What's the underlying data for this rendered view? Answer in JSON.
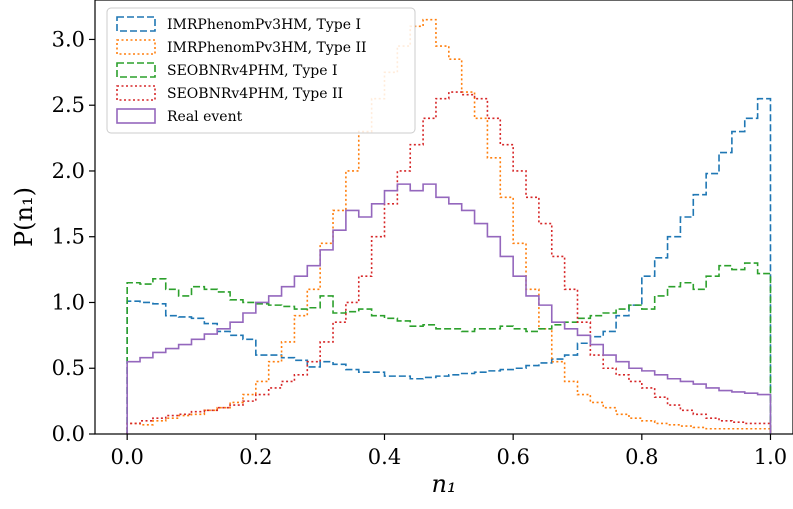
{
  "chart_data": {
    "type": "histogram",
    "xlabel": "n₁",
    "ylabel": "P(n₁)",
    "xlim": [
      -0.05,
      1.035
    ],
    "ylim": [
      0,
      3.3
    ],
    "xticks": [
      0.0,
      0.2,
      0.4,
      0.6,
      0.8,
      1.0
    ],
    "xtick_labels": [
      "0.0",
      "0.2",
      "0.4",
      "0.6",
      "0.8",
      "1.0"
    ],
    "yticks": [
      0.0,
      0.5,
      1.0,
      1.5,
      2.0,
      2.5,
      3.0
    ],
    "ytick_labels": [
      "0.0",
      "0.5",
      "1.0",
      "1.5",
      "2.0",
      "2.5",
      "3.0"
    ],
    "grid": false,
    "legend_position": "upper-left",
    "bin_edges": [
      0.0,
      0.02,
      0.04,
      0.06,
      0.08,
      0.1,
      0.12,
      0.14,
      0.16,
      0.18,
      0.2,
      0.22,
      0.24,
      0.26,
      0.28,
      0.3,
      0.32,
      0.34,
      0.36,
      0.38,
      0.4,
      0.42,
      0.44,
      0.46,
      0.48,
      0.5,
      0.52,
      0.54,
      0.56,
      0.58,
      0.6,
      0.62,
      0.64,
      0.66,
      0.68,
      0.7,
      0.72,
      0.74,
      0.76,
      0.78,
      0.8,
      0.82,
      0.84,
      0.86,
      0.88,
      0.9,
      0.92,
      0.94,
      0.96,
      0.98,
      1.0
    ],
    "series": [
      {
        "name": "IMRPhenomPv3HM, Type I",
        "color": "#1f77b4",
        "dash": "dashed",
        "values": [
          1.01,
          1.0,
          0.99,
          0.9,
          0.89,
          0.88,
          0.84,
          0.78,
          0.75,
          0.72,
          0.6,
          0.6,
          0.58,
          0.56,
          0.51,
          0.55,
          0.53,
          0.49,
          0.47,
          0.47,
          0.44,
          0.44,
          0.42,
          0.43,
          0.44,
          0.45,
          0.46,
          0.47,
          0.48,
          0.49,
          0.5,
          0.52,
          0.54,
          0.57,
          0.6,
          0.69,
          0.74,
          0.78,
          0.9,
          0.98,
          1.2,
          1.34,
          1.5,
          1.65,
          1.82,
          1.98,
          2.14,
          2.3,
          2.4,
          2.55
        ]
      },
      {
        "name": "IMRPhenomPv3HM, Type II",
        "color": "#ff7f0e",
        "dash": "dotted",
        "values": [
          0.08,
          0.07,
          0.1,
          0.12,
          0.14,
          0.15,
          0.18,
          0.2,
          0.24,
          0.3,
          0.4,
          0.55,
          0.7,
          0.9,
          1.1,
          1.45,
          1.7,
          2.0,
          2.3,
          2.55,
          2.75,
          2.95,
          3.1,
          3.15,
          2.95,
          2.85,
          2.6,
          2.4,
          2.1,
          1.8,
          1.45,
          1.1,
          0.8,
          0.55,
          0.4,
          0.3,
          0.24,
          0.2,
          0.15,
          0.12,
          0.1,
          0.08,
          0.07,
          0.06,
          0.05,
          0.04,
          0.04,
          0.04,
          0.04,
          0.04
        ]
      },
      {
        "name": "SEOBNRv4PHM, Type I",
        "color": "#2ca02c",
        "dash": "dashed",
        "values": [
          1.15,
          1.14,
          1.18,
          1.1,
          1.05,
          1.12,
          1.1,
          1.08,
          1.02,
          1.0,
          0.99,
          0.98,
          0.97,
          0.95,
          0.96,
          1.05,
          0.92,
          0.93,
          0.95,
          0.9,
          0.88,
          0.86,
          0.82,
          0.83,
          0.8,
          0.8,
          0.78,
          0.8,
          0.8,
          0.82,
          0.8,
          0.78,
          0.8,
          0.83,
          0.85,
          0.88,
          0.9,
          0.92,
          0.95,
          0.98,
          0.95,
          1.05,
          1.12,
          1.15,
          1.1,
          1.2,
          1.28,
          1.25,
          1.3,
          1.22
        ]
      },
      {
        "name": "SEOBNRv4PHM, Type II",
        "color": "#d62728",
        "dash": "dotted",
        "values": [
          0.08,
          0.1,
          0.12,
          0.14,
          0.15,
          0.17,
          0.18,
          0.2,
          0.22,
          0.25,
          0.3,
          0.35,
          0.4,
          0.45,
          0.55,
          0.7,
          0.85,
          1.0,
          1.2,
          1.5,
          1.75,
          2.0,
          2.2,
          2.4,
          2.55,
          2.6,
          2.58,
          2.55,
          2.4,
          2.2,
          2.0,
          1.8,
          1.6,
          1.35,
          1.1,
          0.85,
          0.6,
          0.5,
          0.45,
          0.4,
          0.35,
          0.28,
          0.22,
          0.18,
          0.15,
          0.12,
          0.1,
          0.09,
          0.08,
          0.08
        ]
      },
      {
        "name": "Real event",
        "color": "#9467bd",
        "dash": "solid",
        "values": [
          0.55,
          0.58,
          0.62,
          0.65,
          0.68,
          0.72,
          0.76,
          0.8,
          0.85,
          0.92,
          1.0,
          1.05,
          1.12,
          1.2,
          1.28,
          1.4,
          1.55,
          1.7,
          1.65,
          1.75,
          1.85,
          1.9,
          1.85,
          1.9,
          1.8,
          1.75,
          1.7,
          1.6,
          1.5,
          1.35,
          1.2,
          1.05,
          0.98,
          0.85,
          0.8,
          0.75,
          0.68,
          0.6,
          0.55,
          0.5,
          0.48,
          0.45,
          0.42,
          0.4,
          0.38,
          0.35,
          0.33,
          0.32,
          0.31,
          0.3
        ]
      }
    ]
  }
}
